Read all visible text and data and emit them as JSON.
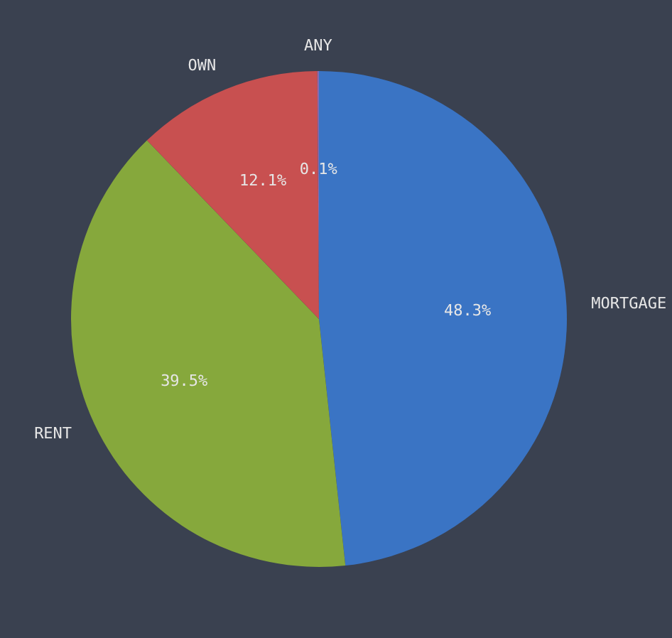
{
  "chart_data": {
    "type": "pie",
    "categories": [
      "MORTGAGE",
      "RENT",
      "OWN",
      "ANY"
    ],
    "values": [
      48.3,
      39.5,
      12.1,
      0.1
    ],
    "colors": [
      "#3a74c4",
      "#86a83c",
      "#c85050",
      "#8a6ab0"
    ],
    "value_labels": [
      "48.3%",
      "39.5%",
      "12.1%",
      "0.1%"
    ],
    "legend": false
  }
}
